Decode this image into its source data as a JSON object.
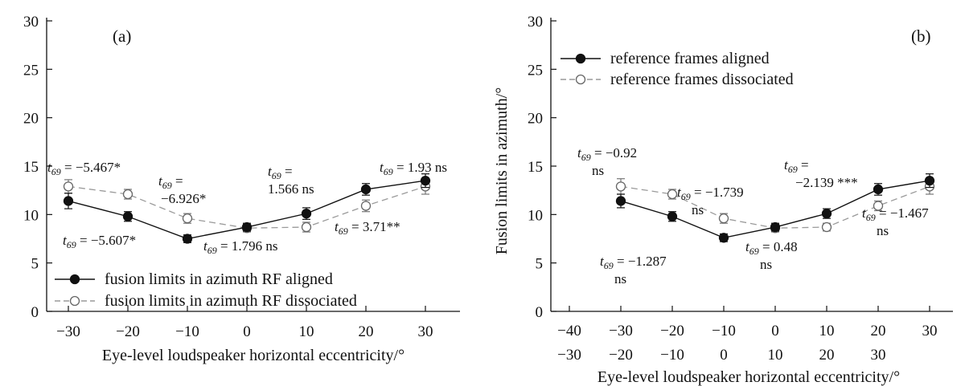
{
  "chart_data": [
    {
      "type": "line",
      "panel_label": "(a)",
      "title": "",
      "xlabel": "Eye-level loudspeaker horizontal eccentricity/°",
      "ylabel": "",
      "x": [
        -30,
        -20,
        -10,
        0,
        10,
        20,
        30
      ],
      "xticks": [
        "−30",
        "−20",
        "−10",
        "0",
        "10",
        "20",
        "30"
      ],
      "ylim": [
        0,
        30
      ],
      "yticks": [
        "0",
        "5",
        "10",
        "15",
        "20",
        "25",
        "30"
      ],
      "grid": false,
      "legend_position": "bottom-left",
      "series": [
        {
          "name": "fusion limits in azimuth RF aligned",
          "marker": "filled-circle",
          "line": "solid",
          "color": "#111111",
          "values": [
            11.4,
            9.8,
            7.5,
            8.7,
            10.1,
            12.6,
            13.5
          ],
          "errors": [
            0.8,
            0.5,
            0.4,
            0.4,
            0.6,
            0.6,
            0.7
          ]
        },
        {
          "name": "fusion limits in azimuth RF dissociated",
          "marker": "open-circle",
          "line": "dashed",
          "color": "#999999",
          "values": [
            12.9,
            12.1,
            9.6,
            8.6,
            8.7,
            10.9,
            12.9
          ],
          "errors": [
            0.7,
            0.5,
            0.5,
            0.4,
            0.5,
            0.6,
            0.8
          ]
        }
      ],
      "annotations": [
        {
          "lines": [
            "t69 = −5.467*"
          ]
        },
        {
          "lines": [
            "t69 = −5.607*"
          ]
        },
        {
          "lines": [
            "t69 =",
            "−6.926*"
          ]
        },
        {
          "lines": [
            "t69 = 1.796 ns"
          ]
        },
        {
          "lines": [
            "t69 =",
            "1.566 ns"
          ]
        },
        {
          "lines": [
            "t69 = 3.71**"
          ]
        },
        {
          "lines": [
            "t69 = 1.93 ns"
          ]
        }
      ]
    },
    {
      "type": "line",
      "panel_label": "(b)",
      "title": "",
      "xlabel": "Eye-level loudspeaker horizontal eccentricity/°",
      "ylabel": "Fusion limits in azimuth/°",
      "x": [
        -30,
        -20,
        -10,
        0,
        10,
        20,
        30
      ],
      "xticks_row1": [
        "−40",
        "−30",
        "−20",
        "−10",
        "0",
        "10",
        "20",
        "30"
      ],
      "xticks_row2": [
        "−30",
        "−20",
        "−10",
        "0",
        "10",
        "20",
        "30"
      ],
      "ylim": [
        0,
        30
      ],
      "yticks": [
        "0",
        "5",
        "10",
        "15",
        "20",
        "25",
        "30"
      ],
      "grid": false,
      "legend_position": "top-left",
      "series": [
        {
          "name": "reference frames aligned",
          "marker": "filled-circle",
          "line": "solid",
          "color": "#111111",
          "values": [
            11.4,
            9.8,
            7.6,
            8.7,
            10.1,
            12.6,
            13.5
          ],
          "errors": [
            0.7,
            0.5,
            0.4,
            0.4,
            0.5,
            0.6,
            0.7
          ]
        },
        {
          "name": "reference frames dissociated",
          "marker": "open-circle",
          "line": "dashed",
          "color": "#999999",
          "values": [
            12.9,
            12.1,
            9.6,
            8.6,
            8.7,
            10.9,
            12.9
          ],
          "errors": [
            0.8,
            0.5,
            0.5,
            0.4,
            0.4,
            0.5,
            0.8
          ]
        }
      ],
      "annotations": [
        {
          "lines": [
            "t69 = −0.92",
            "ns"
          ]
        },
        {
          "lines": [
            "t69 = −1.287",
            "ns"
          ]
        },
        {
          "lines": [
            "t69 = −1.739",
            "ns"
          ]
        },
        {
          "lines": [
            "t69 = 0.48",
            "ns"
          ]
        },
        {
          "lines": [
            "t69 =",
            "−2.139 ***"
          ]
        },
        {
          "lines": [
            "t69 = −1.467",
            "ns"
          ]
        }
      ]
    }
  ]
}
